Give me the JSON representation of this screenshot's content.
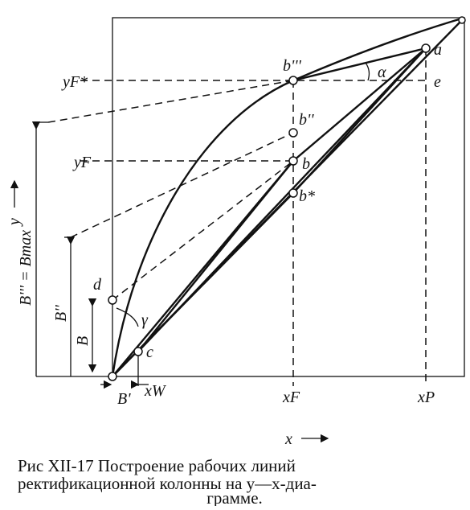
{
  "diagram": {
    "labels": {
      "y_f_star": "yF*",
      "b_triple": "b'''",
      "alpha": "α",
      "a": "a",
      "e": "e",
      "b_double": "b''",
      "y_f": "yF",
      "b": "b",
      "b_star": "b*",
      "d": "d",
      "c": "c",
      "x_w": "xW",
      "x_f": "xF",
      "x_p": "xP",
      "b_prime": "B'",
      "x_axis": "x",
      "y_axis": "y",
      "b_max": "B''' = Bmax",
      "b_double_len": "B''",
      "b_len": "B",
      "gamma": "γ"
    },
    "caption": [
      "Рис  XII-17  Построение рабочих линий",
      "ректификационной колонны на y—x-диа-",
      "грамме."
    ]
  }
}
